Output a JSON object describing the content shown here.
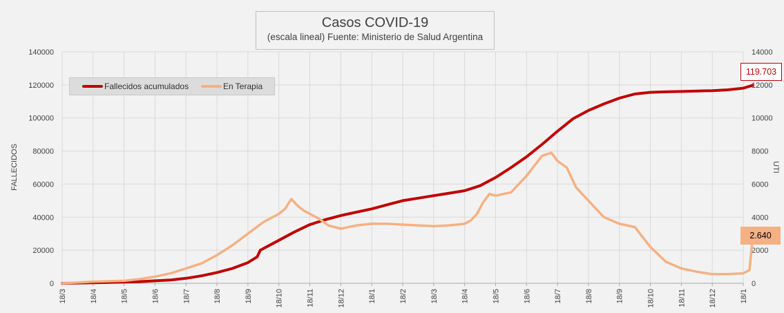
{
  "chart_data": {
    "type": "line",
    "title": "Casos COVID-19",
    "subtitle": "(escala lineal) Fuente: Ministerio de Salud Argentina",
    "ylabel": "FALLECIDOS",
    "y2label": "UTI",
    "ylim": [
      0,
      140000
    ],
    "y2lim": [
      0,
      14000
    ],
    "yticks": [
      "0",
      "20000",
      "40000",
      "60000",
      "80000",
      "100000",
      "120000",
      "140000"
    ],
    "y2ticks": [
      "0",
      "2000",
      "4000",
      "6000",
      "8000",
      "10000",
      "12000",
      "14000"
    ],
    "categories": [
      "18/3",
      "18/4",
      "18/5",
      "18/6",
      "18/7",
      "18/8",
      "18/9",
      "18/10",
      "18/11",
      "18/12",
      "18/1",
      "18/2",
      "18/3",
      "18/4",
      "18/5",
      "18/6",
      "18/7",
      "18/8",
      "18/9",
      "18/10",
      "18/11",
      "18/12",
      "18/1"
    ],
    "series": [
      {
        "name": "Fallecidos acumulados",
        "axis": "left",
        "color": "#c00000",
        "x": [
          0,
          1,
          2,
          2.5,
          3,
          3.5,
          4,
          4.5,
          5,
          5.5,
          6,
          6.3,
          6.4,
          7,
          7.5,
          8,
          8.5,
          9,
          9.5,
          10,
          10.5,
          11,
          11.5,
          12,
          12.5,
          13,
          13.5,
          14,
          14.5,
          15,
          15.5,
          16,
          16.5,
          17,
          17.5,
          18,
          18.5,
          19,
          19.5,
          20,
          20.5,
          21,
          21.5,
          22,
          22.3
        ],
        "values": [
          0,
          300,
          700,
          1000,
          1500,
          2000,
          3000,
          4500,
          6500,
          9000,
          12500,
          16000,
          20000,
          26000,
          31000,
          35500,
          38500,
          41000,
          43000,
          45000,
          47500,
          50000,
          51500,
          53000,
          54500,
          56000,
          59000,
          64000,
          70000,
          76500,
          84000,
          92000,
          99500,
          104500,
          108500,
          112000,
          114500,
          115500,
          115800,
          116000,
          116300,
          116500,
          117000,
          118000,
          119703
        ]
      },
      {
        "name": "En Terapia",
        "axis": "right",
        "color": "#f4b183",
        "x": [
          0,
          1,
          2,
          2.5,
          3,
          3.5,
          4,
          4.5,
          5,
          5.5,
          6,
          6.5,
          7,
          7.2,
          7.4,
          7.6,
          7.8,
          8,
          8.3,
          8.6,
          9,
          9.5,
          10,
          10.5,
          11,
          11.5,
          12,
          12.5,
          13,
          13.2,
          13.4,
          13.6,
          13.8,
          14,
          14.5,
          15,
          15.5,
          15.8,
          16,
          16.3,
          16.6,
          17,
          17.5,
          18,
          18.5,
          19,
          19.5,
          20,
          20.5,
          21,
          21.5,
          22,
          22.2,
          22.3
        ],
        "values": [
          0,
          100,
          150,
          250,
          400,
          600,
          900,
          1200,
          1700,
          2300,
          3000,
          3700,
          4200,
          4500,
          5100,
          4700,
          4400,
          4200,
          3900,
          3500,
          3300,
          3500,
          3600,
          3600,
          3550,
          3500,
          3450,
          3500,
          3600,
          3800,
          4200,
          4900,
          5400,
          5300,
          5500,
          6500,
          7700,
          7900,
          7400,
          7000,
          5800,
          5000,
          4000,
          3600,
          3400,
          2200,
          1300,
          900,
          700,
          550,
          550,
          600,
          800,
          2640
        ]
      }
    ],
    "annotations": [
      "119.703",
      "2.640"
    ]
  }
}
